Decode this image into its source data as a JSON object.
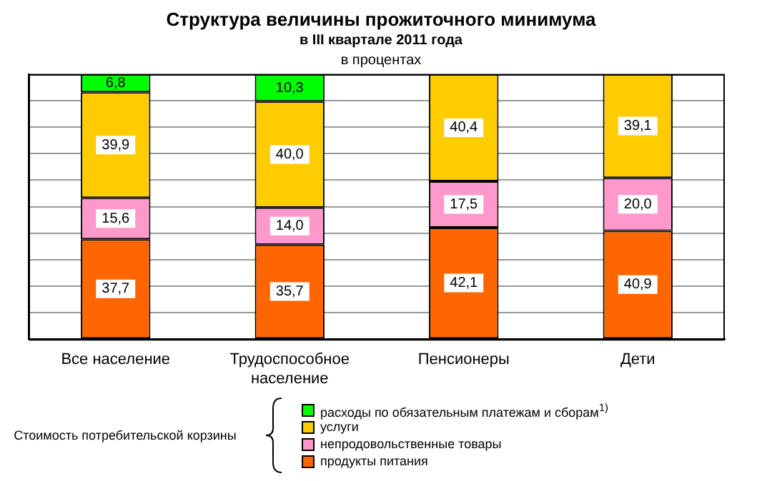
{
  "chart_data": {
    "type": "bar",
    "title": "Структура величины прожиточного минимума",
    "subtitle": "в III квартале 2011 года",
    "annotations": [
      "в процентах",
      "Стоимость потребительской корзины"
    ],
    "categories": [
      "Все население",
      "Трудоспособное население",
      "Пенсионеры",
      "Дети"
    ],
    "stacked": true,
    "ylim": [
      0,
      100
    ],
    "yticks": [
      {
        "value": 0,
        "label": null
      },
      {
        "value": 10,
        "label": null
      },
      {
        "value": 20,
        "label": null
      },
      {
        "value": 30,
        "label": null
      },
      {
        "value": 40,
        "label": null
      },
      {
        "value": 50,
        "label": null
      },
      {
        "value": 60,
        "label": null
      },
      {
        "value": 70,
        "label": null
      },
      {
        "value": 80,
        "label": null
      },
      {
        "value": 90,
        "label": null
      },
      {
        "value": 100,
        "label": null
      }
    ],
    "tick_labels": "x",
    "grid": "y",
    "legend": "bottom",
    "series": [
      {
        "name": "продукты питания",
        "color": "#ff6600",
        "values": [
          37.7,
          35.7,
          42.1,
          40.9
        ],
        "value_labels": [
          "37,7",
          "35,7",
          "42,1",
          "40,9"
        ]
      },
      {
        "name": "непродовольственные товары",
        "color": "#ff99cc",
        "values": [
          15.6,
          14.0,
          17.5,
          20.0
        ],
        "value_labels": [
          "15,6",
          "14,0",
          "17,5",
          "20,0"
        ]
      },
      {
        "name": "услуги",
        "color": "#ffcc00",
        "values": [
          39.9,
          40.0,
          40.4,
          39.1
        ],
        "value_labels": [
          "39,9",
          "40,0",
          "40,4",
          "39,1"
        ]
      },
      {
        "name": "расходы по обязательным платежам и сборам$^{1)}$",
        "color": "#00ff00",
        "values": [
          6.8,
          10.3,
          null,
          null
        ],
        "value_labels": [
          "6,8",
          "10,3",
          null,
          null
        ]
      }
    ]
  }
}
